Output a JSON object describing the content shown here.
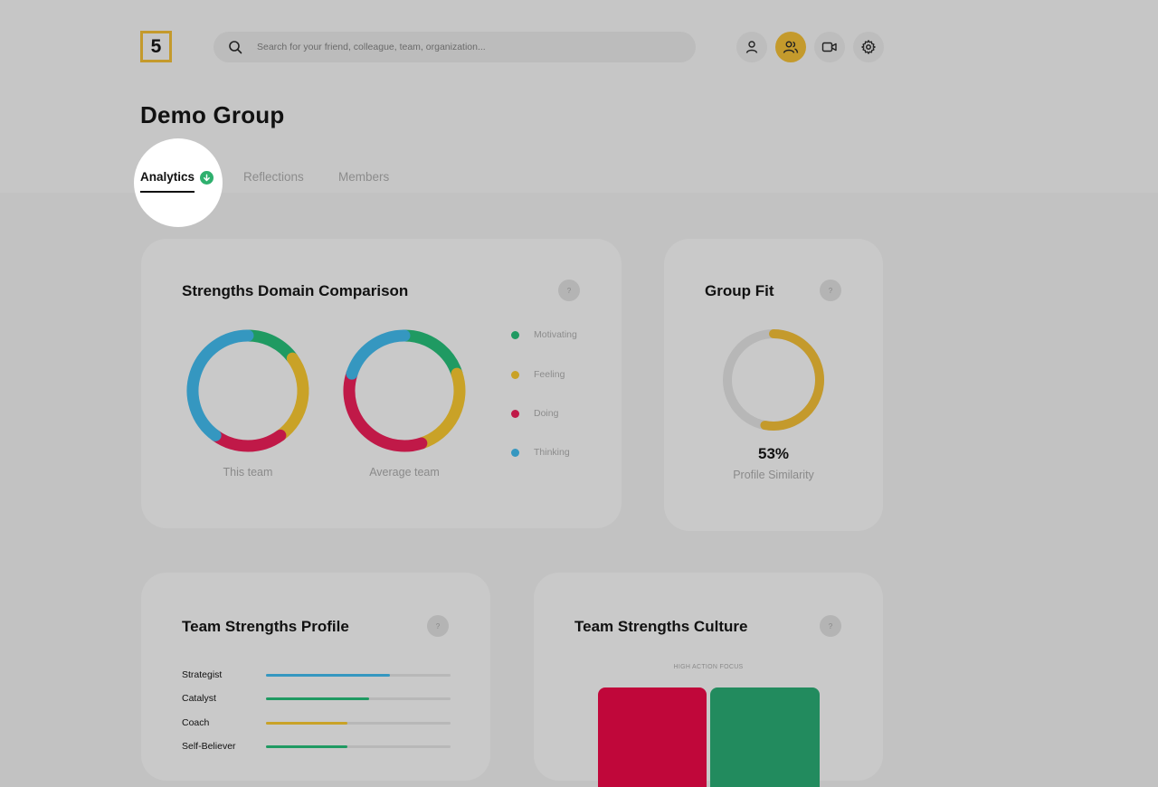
{
  "header": {
    "logo_text": "5",
    "search_placeholder": "Search for your friend, colleague, team, organization...",
    "icons": [
      "user-icon",
      "group-icon",
      "video-icon",
      "gear-icon"
    ],
    "accent_color": "#c49a2c"
  },
  "page": {
    "title": "Demo Group"
  },
  "tabs": [
    {
      "label": "Analytics",
      "active": true
    },
    {
      "label": "Reflections",
      "active": false
    },
    {
      "label": "Members",
      "active": false
    }
  ],
  "domain_comparison": {
    "title": "Strengths Domain Comparison",
    "help": "?",
    "charts": [
      {
        "caption": "This team",
        "segments": [
          {
            "name": "Motivating",
            "value": 15,
            "color": "#1f9a62"
          },
          {
            "name": "Feeling",
            "value": 25,
            "color": "#c9a227"
          },
          {
            "name": "Doing",
            "value": 20,
            "color": "#c01948"
          },
          {
            "name": "Thinking",
            "value": 40,
            "color": "#3597c0"
          }
        ]
      },
      {
        "caption": "Average team",
        "segments": [
          {
            "name": "Motivating",
            "value": 20,
            "color": "#1f9a62"
          },
          {
            "name": "Feeling",
            "value": 25,
            "color": "#c9a227"
          },
          {
            "name": "Doing",
            "value": 35,
            "color": "#c01948"
          },
          {
            "name": "Thinking",
            "value": 20,
            "color": "#3597c0"
          }
        ]
      }
    ],
    "legend": [
      {
        "label": "Motivating",
        "color": "#1f9a62"
      },
      {
        "label": "Feeling",
        "color": "#c9a227"
      },
      {
        "label": "Doing",
        "color": "#c01948"
      },
      {
        "label": "Thinking",
        "color": "#3597c0"
      }
    ]
  },
  "group_fit": {
    "title": "Group Fit",
    "help": "?",
    "value": 53,
    "value_text": "53%",
    "caption": "Profile Similarity",
    "color": "#c49a2c"
  },
  "strengths_profile": {
    "title": "Team Strengths Profile",
    "help": "?",
    "items": [
      {
        "label": "Strategist",
        "value": 0.67,
        "color": "#3597c0"
      },
      {
        "label": "Catalyst",
        "value": 0.56,
        "color": "#1f9a62"
      },
      {
        "label": "Coach",
        "value": 0.44,
        "color": "#c9a227"
      },
      {
        "label": "Self-Believer",
        "value": 0.44,
        "color": "#1f9a62"
      }
    ]
  },
  "strengths_culture": {
    "title": "Team Strengths Culture",
    "help": "?",
    "top_label": "HIGH ACTION FOCUS",
    "quadrant_colors": [
      "#c0073a",
      "#228b5e"
    ]
  }
}
